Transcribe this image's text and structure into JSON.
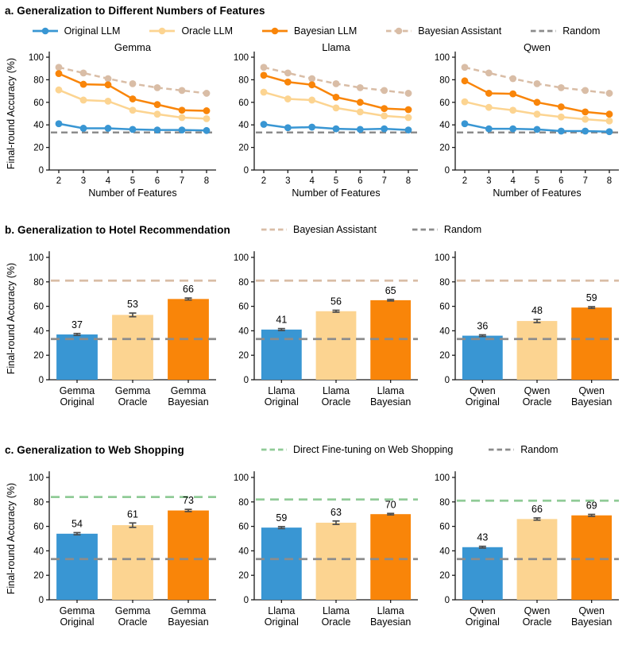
{
  "colors": {
    "original_blue": "#3996d3",
    "oracle_cream": "#fcd491",
    "bayesian_orange": "#f98509",
    "assistant_tan": "#d9bda6",
    "random_gray": "#8c8c8c",
    "finetune_green": "#90cb97",
    "errorbar_gray": "#4d4d4d",
    "axis_black": "#1a1a1a"
  },
  "chart_data": [
    {
      "panel": "a",
      "type": "line",
      "title": "a. Generalization to Different Numbers of Features",
      "xlabel": "Number of Features",
      "ylabel": "Final-round Accuracy (%)",
      "x": [
        2,
        3,
        4,
        5,
        6,
        7,
        8
      ],
      "ylim": [
        0,
        105
      ],
      "yticks": [
        0,
        20,
        40,
        60,
        80,
        100
      ],
      "legend": [
        {
          "key": "original",
          "label": "Original LLM",
          "color": "#3996d3",
          "dashed": false,
          "marker": true
        },
        {
          "key": "oracle",
          "label": "Oracle LLM",
          "color": "#fcd491",
          "dashed": false,
          "marker": true
        },
        {
          "key": "bayesian",
          "label": "Bayesian LLM",
          "color": "#f98509",
          "dashed": false,
          "marker": true
        },
        {
          "key": "assistant",
          "label": "Bayesian Assistant",
          "color": "#d9bda6",
          "dashed": true,
          "marker": true
        },
        {
          "key": "random",
          "label": "Random",
          "color": "#8c8c8c",
          "dashed": true,
          "marker": false
        }
      ],
      "subplots": [
        {
          "title": "Gemma",
          "series": [
            {
              "key": "assistant",
              "values": [
                91,
                86,
                81,
                76.5,
                73,
                70.5,
                68
              ]
            },
            {
              "key": "bayesian",
              "values": [
                85.5,
                76,
                75.5,
                63,
                58,
                53,
                52.5
              ]
            },
            {
              "key": "oracle",
              "values": [
                71,
                62,
                61,
                53,
                49.5,
                46.5,
                45.5
              ]
            },
            {
              "key": "original",
              "values": [
                41,
                37,
                37,
                36,
                35.5,
                35.5,
                35
              ]
            }
          ],
          "random_line": 33.3
        },
        {
          "title": "Llama",
          "series": [
            {
              "key": "assistant",
              "values": [
                91,
                86,
                81,
                76.5,
                73,
                70.5,
                68
              ]
            },
            {
              "key": "bayesian",
              "values": [
                84,
                78,
                75.5,
                64.5,
                60,
                54.5,
                53.5
              ]
            },
            {
              "key": "oracle",
              "values": [
                69,
                63,
                62,
                55,
                51.5,
                48,
                46.5
              ]
            },
            {
              "key": "original",
              "values": [
                40.5,
                37.5,
                38,
                36.5,
                36,
                36.5,
                35.5
              ]
            }
          ],
          "random_line": 33.3
        },
        {
          "title": "Qwen",
          "series": [
            {
              "key": "assistant",
              "values": [
                91,
                86,
                81,
                76.5,
                73,
                70.5,
                68
              ]
            },
            {
              "key": "bayesian",
              "values": [
                79,
                68,
                67.5,
                60,
                56,
                51.5,
                49.5
              ]
            },
            {
              "key": "oracle",
              "values": [
                60.5,
                55.5,
                53,
                49.5,
                47,
                45,
                43.5
              ]
            },
            {
              "key": "original",
              "values": [
                41,
                36.5,
                36.5,
                36,
                34.5,
                34.5,
                34
              ]
            }
          ],
          "random_line": 33.3
        }
      ]
    },
    {
      "panel": "b",
      "type": "bar",
      "title": "b. Generalization to Hotel Recommendation",
      "ylabel": "Final-round Accuracy (%)",
      "ylim": [
        0,
        105
      ],
      "yticks": [
        0,
        20,
        40,
        60,
        80,
        100
      ],
      "bar_colors": [
        "#3996d3",
        "#fcd491",
        "#f98509"
      ],
      "legend": [
        {
          "key": "assistant",
          "label": "Bayesian Assistant",
          "color": "#d9bda6",
          "dashed": true,
          "marker": false
        },
        {
          "key": "random",
          "label": "Random",
          "color": "#8c8c8c",
          "dashed": true,
          "marker": false
        }
      ],
      "subplots": [
        {
          "categories": [
            [
              "Gemma",
              "Original"
            ],
            [
              "Gemma",
              "Oracle"
            ],
            [
              "Gemma",
              "Bayesian"
            ]
          ],
          "values": [
            37,
            53,
            66
          ],
          "errors": [
            0.8,
            1.5,
            0.8
          ],
          "ref_lines": [
            {
              "key": "assistant",
              "value": 81
            },
            {
              "key": "random",
              "value": 33.3
            }
          ]
        },
        {
          "categories": [
            [
              "Llama",
              "Original"
            ],
            [
              "Llama",
              "Oracle"
            ],
            [
              "Llama",
              "Bayesian"
            ]
          ],
          "values": [
            41,
            56,
            65
          ],
          "errors": [
            0.8,
            0.8,
            0.6
          ],
          "ref_lines": [
            {
              "key": "assistant",
              "value": 81
            },
            {
              "key": "random",
              "value": 33.3
            }
          ]
        },
        {
          "categories": [
            [
              "Qwen",
              "Original"
            ],
            [
              "Qwen",
              "Oracle"
            ],
            [
              "Qwen",
              "Bayesian"
            ]
          ],
          "values": [
            36,
            48,
            59
          ],
          "errors": [
            0.7,
            1.3,
            0.7
          ],
          "ref_lines": [
            {
              "key": "assistant",
              "value": 81
            },
            {
              "key": "random",
              "value": 33.3
            }
          ]
        }
      ]
    },
    {
      "panel": "c",
      "type": "bar",
      "title": "c. Generalization to Web Shopping",
      "ylabel": "Final-round Accuracy (%)",
      "ylim": [
        0,
        105
      ],
      "yticks": [
        0,
        20,
        40,
        60,
        80,
        100
      ],
      "bar_colors": [
        "#3996d3",
        "#fcd491",
        "#f98509"
      ],
      "legend": [
        {
          "key": "finetune",
          "label": "Direct Fine-tuning on Web Shopping",
          "color": "#90cb97",
          "dashed": true,
          "marker": false
        },
        {
          "key": "random",
          "label": "Random",
          "color": "#8c8c8c",
          "dashed": true,
          "marker": false
        }
      ],
      "subplots": [
        {
          "categories": [
            [
              "Gemma",
              "Original"
            ],
            [
              "Gemma",
              "Oracle"
            ],
            [
              "Gemma",
              "Bayesian"
            ]
          ],
          "values": [
            54,
            61,
            73
          ],
          "errors": [
            0.9,
            1.8,
            0.9
          ],
          "ref_lines": [
            {
              "key": "finetune",
              "value": 84
            },
            {
              "key": "random",
              "value": 33.3
            }
          ]
        },
        {
          "categories": [
            [
              "Llama",
              "Original"
            ],
            [
              "Llama",
              "Oracle"
            ],
            [
              "Llama",
              "Bayesian"
            ]
          ],
          "values": [
            59,
            63,
            70
          ],
          "errors": [
            0.8,
            1.4,
            0.6
          ],
          "ref_lines": [
            {
              "key": "finetune",
              "value": 82
            },
            {
              "key": "random",
              "value": 33.3
            }
          ]
        },
        {
          "categories": [
            [
              "Qwen",
              "Original"
            ],
            [
              "Qwen",
              "Oracle"
            ],
            [
              "Qwen",
              "Bayesian"
            ]
          ],
          "values": [
            43,
            66,
            69
          ],
          "errors": [
            0.7,
            0.9,
            0.8
          ],
          "ref_lines": [
            {
              "key": "finetune",
              "value": 81
            },
            {
              "key": "random",
              "value": 33.3
            }
          ]
        }
      ]
    }
  ]
}
